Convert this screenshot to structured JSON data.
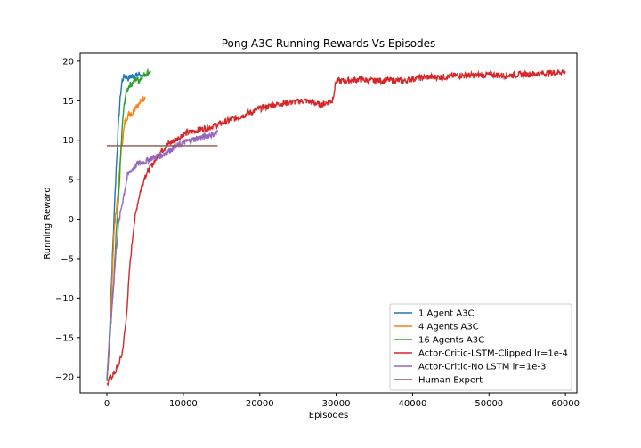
{
  "chart_data": {
    "type": "line",
    "title": "Pong A3C Running Rewards Vs Episodes",
    "xlabel": "Episodes",
    "ylabel": "Running Reward",
    "xlim": [
      -3500,
      61500
    ],
    "ylim": [
      -22,
      21
    ],
    "xticks": [
      0,
      10000,
      20000,
      30000,
      40000,
      50000,
      60000
    ],
    "xtick_labels": [
      "0",
      "10000",
      "20000",
      "30000",
      "40000",
      "50000",
      "60000"
    ],
    "yticks": [
      -20,
      -15,
      -10,
      -5,
      0,
      5,
      10,
      15,
      20
    ],
    "ytick_labels": [
      "−20",
      "−15",
      "−10",
      "−5",
      "0",
      "5",
      "10",
      "15",
      "20"
    ],
    "grid": false,
    "legend_position": "bottom-right",
    "series": [
      {
        "name": "1 Agent A3C",
        "color": "#1f77b4",
        "x": [
          0,
          200,
          400,
          600,
          800,
          1000,
          1200,
          1400,
          1600,
          1800,
          2000,
          2200,
          2400,
          2600,
          2800,
          3000,
          3300,
          3600,
          3900,
          4200,
          4500
        ],
        "y": [
          -20.5,
          -17.5,
          -13,
          -8,
          -3,
          2,
          6,
          10,
          13.5,
          16,
          17.5,
          18,
          18.2,
          18,
          17.8,
          18,
          18.1,
          18.3,
          18.2,
          18.4,
          18.3
        ]
      },
      {
        "name": "4 Agents A3C",
        "color": "#ff7f0e",
        "x": [
          0,
          300,
          600,
          900,
          1200,
          1500,
          1800,
          2100,
          2400,
          2700,
          3000,
          3300,
          3600,
          3900,
          4200,
          4500,
          4800,
          5000
        ],
        "y": [
          -20,
          -17,
          -10,
          -2,
          1,
          4,
          8,
          10.5,
          12.5,
          13,
          13.5,
          13.3,
          14,
          14.5,
          14.5,
          15,
          15.3,
          15.5
        ]
      },
      {
        "name": "16 Agents A3C",
        "color": "#2ca02c",
        "x": [
          0,
          300,
          600,
          900,
          1200,
          1500,
          1800,
          2100,
          2400,
          2700,
          3000,
          3300,
          3600,
          3900,
          4200,
          4500,
          4800,
          5100,
          5400,
          5700
        ],
        "y": [
          -20,
          -16,
          -12,
          -8,
          -2,
          2,
          8,
          13,
          15.5,
          16.5,
          17,
          17.2,
          17.5,
          17.8,
          17.5,
          18,
          18.2,
          18.5,
          18.6,
          18.8
        ]
      },
      {
        "name": "Actor-Critic-LSTM-Clipped lr=1e-4",
        "color": "#d62728",
        "x": [
          0,
          500,
          1000,
          1500,
          2000,
          2500,
          3000,
          3500,
          4000,
          4500,
          5000,
          6000,
          7000,
          8000,
          9000,
          10000,
          12000,
          14000,
          16000,
          18000,
          20000,
          22000,
          24000,
          26000,
          28000,
          29500,
          30000,
          31000,
          33000,
          35000,
          37000,
          39000,
          40000,
          42000,
          44000,
          46000,
          48000,
          50000,
          52000,
          54000,
          56000,
          58000,
          60000
        ],
        "y": [
          -21,
          -20,
          -19.5,
          -18.5,
          -17,
          -13,
          -6,
          -1,
          2,
          4,
          5.5,
          7,
          8.5,
          9.5,
          10,
          10.8,
          11.3,
          11.8,
          12.5,
          13.2,
          14,
          14.5,
          14.8,
          15,
          14.5,
          15,
          17.5,
          17.5,
          17.7,
          17.5,
          17.6,
          17.5,
          17.8,
          18,
          18,
          18.2,
          18.2,
          18.3,
          18.2,
          18.3,
          18.4,
          18.5,
          18.7
        ]
      },
      {
        "name": "Actor-Critic-No LSTM lr=1e-3",
        "color": "#9467bd",
        "x": [
          0,
          300,
          600,
          900,
          1200,
          1500,
          1800,
          2100,
          2400,
          2700,
          3000,
          3500,
          4000,
          5000,
          6000,
          7000,
          8000,
          9000,
          10000,
          11000,
          12000,
          13000,
          14000,
          14500
        ],
        "y": [
          -20,
          -16,
          -12,
          -8,
          -4,
          -1,
          1,
          2.5,
          4,
          5.5,
          6,
          6.5,
          7,
          7.3,
          7.8,
          8,
          8.6,
          9.2,
          9.7,
          10,
          10.3,
          10.5,
          10.8,
          11
        ]
      },
      {
        "name": "Human Expert",
        "color": "#8c564b",
        "x": [
          0,
          14500
        ],
        "y": [
          9.3,
          9.3
        ]
      }
    ]
  }
}
